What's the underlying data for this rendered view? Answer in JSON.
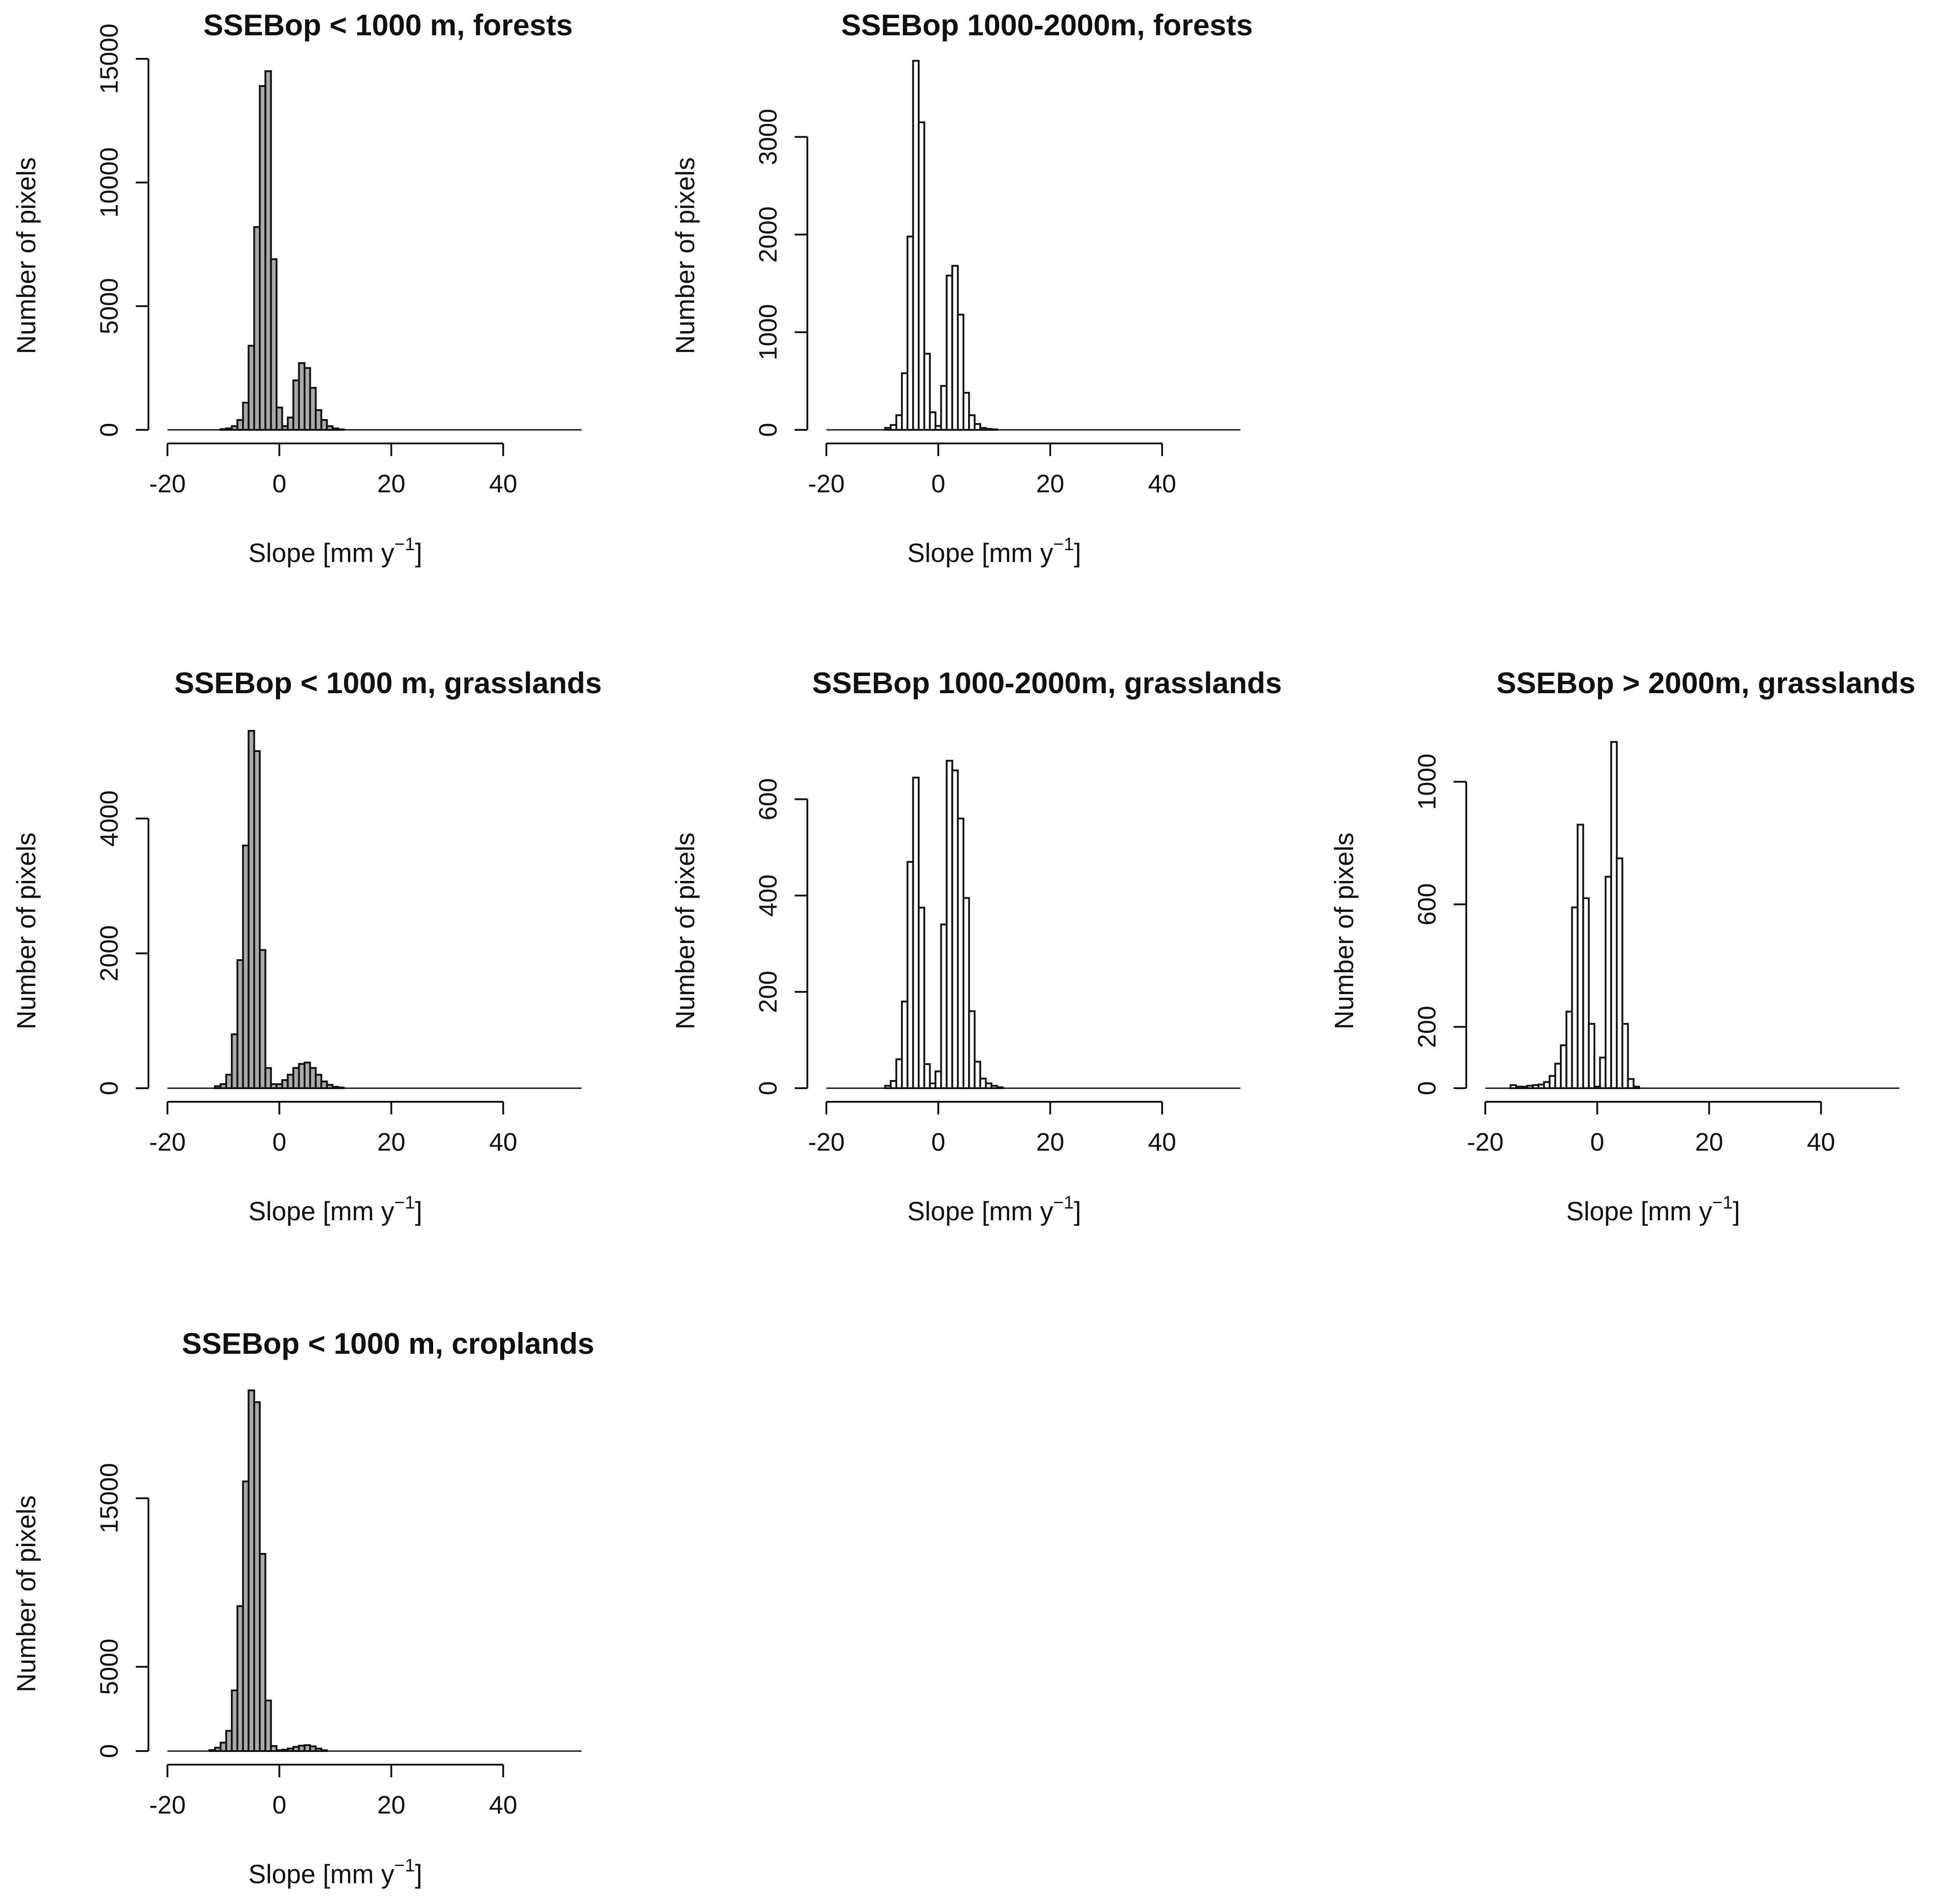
{
  "figure": {
    "bar_fill": "#a9a9a9",
    "bar_fill_light": "#ffffff",
    "stroke_color": "#111111"
  },
  "chart_data": [
    {
      "type": "bar",
      "panel": "forests-below-1000",
      "title": "SSEBop < 1000 m, forests",
      "xlabel": "Slope [mm y",
      "xlabel_sup": "−1",
      "xlabel_close": "]",
      "ylabel": "Number of pixels",
      "xlim": [
        -20,
        54
      ],
      "ylim": [
        0,
        15000
      ],
      "xticks": [
        -20,
        0,
        20,
        40
      ],
      "xtick_labels": [
        "-20",
        "0",
        "20",
        "40"
      ],
      "yticks": [
        0,
        5000,
        10000,
        15000
      ],
      "ytick_labels": [
        "0",
        "5000",
        "10000",
        "15000"
      ],
      "bin_width": 1,
      "x": [
        -10,
        -9,
        -8,
        -7,
        -6,
        -5,
        -4,
        -3,
        -2,
        -1,
        0,
        1,
        2,
        3,
        4,
        5,
        6,
        7,
        8,
        9,
        10,
        11
      ],
      "values": [
        30,
        60,
        150,
        400,
        1100,
        3400,
        8200,
        13900,
        14500,
        6900,
        900,
        150,
        500,
        2000,
        2700,
        2500,
        1700,
        800,
        400,
        150,
        60,
        20
      ],
      "light_bars": false
    },
    {
      "type": "bar",
      "panel": "forests-1000-2000",
      "title": "SSEBop 1000-2000m, forests",
      "xlabel": "Slope [mm y",
      "xlabel_sup": "−1",
      "xlabel_close": "]",
      "ylabel": "Number of pixels",
      "xlim": [
        -20,
        54
      ],
      "ylim": [
        0,
        3800
      ],
      "xticks": [
        -20,
        0,
        20,
        40
      ],
      "xtick_labels": [
        "-20",
        "0",
        "20",
        "40"
      ],
      "yticks": [
        0,
        1000,
        2000,
        3000
      ],
      "ytick_labels": [
        "0",
        "1000",
        "2000",
        "3000"
      ],
      "bin_width": 1,
      "x": [
        -9,
        -8,
        -7,
        -6,
        -5,
        -4,
        -3,
        -2,
        -1,
        0,
        1,
        2,
        3,
        4,
        5,
        6,
        7,
        8,
        9,
        10
      ],
      "values": [
        20,
        50,
        150,
        580,
        1980,
        3780,
        3150,
        780,
        180,
        40,
        450,
        1580,
        1680,
        1180,
        380,
        150,
        60,
        20,
        10,
        5
      ],
      "light_bars": true
    },
    {
      "type": "bar",
      "panel": "grasslands-below-1000",
      "title": "SSEBop < 1000 m, grasslands",
      "xlabel": "Slope [mm y",
      "xlabel_sup": "−1",
      "xlabel_close": "]",
      "ylabel": "Number of pixels",
      "xlim": [
        -20,
        54
      ],
      "ylim": [
        0,
        5000
      ],
      "xticks": [
        -20,
        0,
        20,
        40
      ],
      "xtick_labels": [
        "-20",
        "0",
        "20",
        "40"
      ],
      "yticks": [
        0,
        2000,
        4000
      ],
      "ytick_labels": [
        "0",
        "2000",
        "4000"
      ],
      "bin_width": 1,
      "x": [
        -11,
        -10,
        -9,
        -8,
        -7,
        -6,
        -5,
        -4,
        -3,
        -2,
        -1,
        0,
        1,
        2,
        3,
        4,
        5,
        6,
        7,
        8,
        9,
        10,
        11
      ],
      "values": [
        30,
        60,
        200,
        800,
        1900,
        3600,
        5300,
        5000,
        2050,
        300,
        60,
        60,
        120,
        200,
        300,
        360,
        380,
        300,
        200,
        100,
        50,
        20,
        10
      ],
      "light_bars": false
    },
    {
      "type": "bar",
      "panel": "grasslands-1000-2000",
      "title": "SSEBop 1000-2000m, grasslands",
      "xlabel": "Slope [mm y",
      "xlabel_sup": "−1",
      "xlabel_close": "]",
      "ylabel": "Number of pixels",
      "xlim": [
        -20,
        54
      ],
      "ylim": [
        0,
        700
      ],
      "xticks": [
        -20,
        0,
        20,
        40
      ],
      "xtick_labels": [
        "-20",
        "0",
        "20",
        "40"
      ],
      "yticks": [
        0,
        200,
        400,
        600
      ],
      "ytick_labels": [
        "0",
        "200",
        "400",
        "600"
      ],
      "bin_width": 1,
      "x": [
        -9,
        -8,
        -7,
        -6,
        -5,
        -4,
        -3,
        -2,
        -1,
        0,
        1,
        2,
        3,
        4,
        5,
        6,
        7,
        8,
        9,
        10,
        11
      ],
      "values": [
        5,
        15,
        60,
        180,
        470,
        645,
        375,
        50,
        10,
        35,
        340,
        680,
        660,
        560,
        395,
        160,
        55,
        20,
        10,
        5,
        2
      ],
      "light_bars": true
    },
    {
      "type": "bar",
      "panel": "grasslands-above-2000",
      "title": "SSEBop > 2000m, grasslands",
      "xlabel": "Slope [mm y",
      "xlabel_sup": "−1",
      "xlabel_close": "]",
      "ylabel": "Number of pixels",
      "xlim": [
        -20,
        54
      ],
      "ylim": [
        0,
        1100
      ],
      "xticks": [
        -20,
        0,
        20,
        40
      ],
      "xtick_labels": [
        "-20",
        "0",
        "20",
        "40"
      ],
      "yticks": [
        0,
        200,
        600,
        1000
      ],
      "ytick_labels": [
        "0",
        "200",
        "600",
        "1000"
      ],
      "bin_width": 1,
      "x": [
        -15,
        -14,
        -13,
        -12,
        -11,
        -10,
        -9,
        -8,
        -7,
        -6,
        -5,
        -4,
        -3,
        -2,
        -1,
        0,
        1,
        2,
        3,
        4,
        5,
        6,
        7
      ],
      "values": [
        10,
        5,
        5,
        8,
        10,
        12,
        20,
        40,
        80,
        140,
        250,
        590,
        860,
        620,
        210,
        5,
        100,
        690,
        1130,
        750,
        210,
        30,
        5
      ],
      "light_bars": true
    },
    {
      "type": "bar",
      "panel": "croplands-below-1000",
      "title": "SSEBop < 1000 m, croplands",
      "xlabel": "Slope [mm y",
      "xlabel_sup": "−1",
      "xlabel_close": "]",
      "ylabel": "Number of pixels",
      "xlim": [
        -20,
        54
      ],
      "ylim": [
        0,
        20000
      ],
      "xticks": [
        -20,
        0,
        20,
        40
      ],
      "xtick_labels": [
        "-20",
        "0",
        "20",
        "40"
      ],
      "yticks": [
        0,
        5000,
        15000
      ],
      "ytick_labels": [
        "0",
        "5000",
        "15000"
      ],
      "bin_width": 1,
      "x": [
        -12,
        -11,
        -10,
        -9,
        -8,
        -7,
        -6,
        -5,
        -4,
        -3,
        -2,
        -1,
        0,
        1,
        2,
        3,
        4,
        5,
        6,
        7,
        8
      ],
      "values": [
        60,
        200,
        500,
        1200,
        3600,
        8600,
        16000,
        21400,
        20700,
        11700,
        3000,
        300,
        50,
        80,
        150,
        250,
        320,
        350,
        280,
        150,
        50
      ],
      "light_bars": false
    }
  ]
}
